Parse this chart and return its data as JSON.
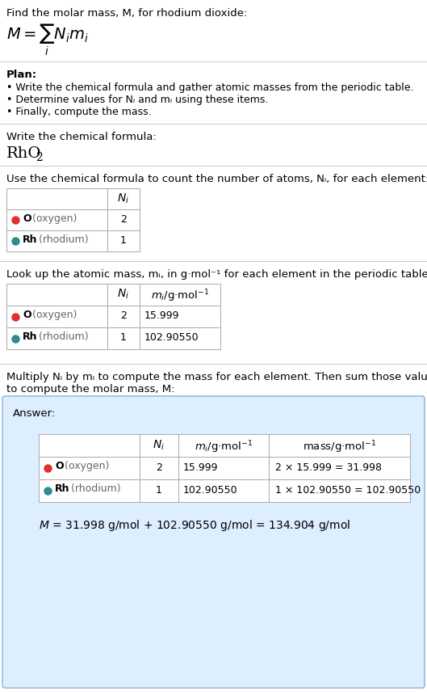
{
  "bg_color": "#ffffff",
  "text_color": "#000000",
  "gray_text": "#666666",
  "red_dot": "#e03030",
  "teal_dot": "#2e8b8b",
  "answer_bg": "#ddeeff",
  "answer_border": "#99bbdd",
  "line_color": "#cccccc",
  "title_line": "Find the molar mass, M, for rhodium dioxide:",
  "plan_header": "Plan:",
  "plan_bullets": [
    "• Write the chemical formula and gather atomic masses from the periodic table.",
    "• Determine values for Nᵢ and mᵢ using these items.",
    "• Finally, compute the mass."
  ],
  "sec2_header": "Write the chemical formula:",
  "sec3_header": "Use the chemical formula to count the number of atoms, Nᵢ, for each element:",
  "sec4_header": "Look up the atomic mass, mᵢ, in g·mol⁻¹ for each element in the periodic table:",
  "sec5_header_1": "Multiply Nᵢ by mᵢ to compute the mass for each element. Then sum those values",
  "sec5_header_2": "to compute the molar mass, M:",
  "answer_label": "Answer:",
  "elements": [
    "O (oxygen)",
    "Rh (rhodium)"
  ],
  "element_bold": [
    "O",
    "Rh"
  ],
  "N_values": [
    "2",
    "1"
  ],
  "m_values": [
    "15.999",
    "102.90550"
  ],
  "mass_values": [
    "2 × 15.999 = 31.998",
    "1 × 102.90550 = 102.90550"
  ],
  "final_eq": "M = 31.998 g/mol + 102.90550 g/mol = 134.904 g/mol"
}
